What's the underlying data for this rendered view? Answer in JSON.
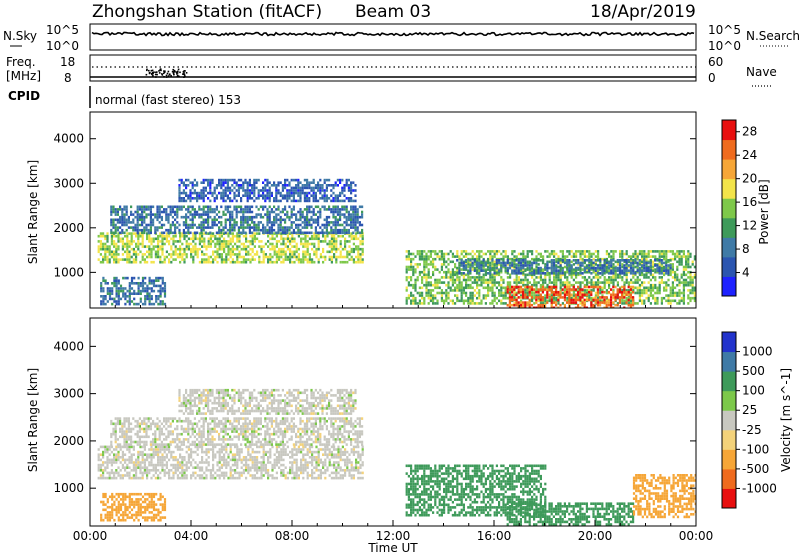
{
  "header": {
    "title": "Zhongshan Station (fitACF)",
    "beam": "Beam 03",
    "date": "18/Apr/2019"
  },
  "noise_panel": {
    "left_label": "N.Sky",
    "right_label": "N.Search",
    "left_ticks": [
      "10^5",
      "10^0"
    ],
    "right_ticks": [
      "10^5",
      "10^0"
    ]
  },
  "freq_panel": {
    "left_label_1": "Freq.",
    "left_label_2": "[MHz]",
    "right_label": "Nave",
    "left_ticks": [
      "18",
      "8"
    ],
    "right_ticks": [
      "60",
      "0"
    ],
    "cpid_label": "CPID",
    "mode_text": "normal (fast stereo) 153"
  },
  "colors": {
    "power": [
      "#1e22ff",
      "#2b55b0",
      "#3f7aa6",
      "#3e9a5a",
      "#7ec84a",
      "#f3e44a",
      "#f6a637",
      "#ef6b1e",
      "#e80f0f"
    ],
    "velocity": [
      "#e80f0f",
      "#ef6b1e",
      "#f6a637",
      "#f3d27a",
      "#c8c8c0",
      "#7cc84a",
      "#3e9a5a",
      "#3f7aa6",
      "#2233cc"
    ]
  },
  "chart_data": [
    {
      "type": "heatmap",
      "name": "power",
      "xlabel": "",
      "ylabel": "Slant Range [km]",
      "xlim": [
        "00:00",
        "24:00"
      ],
      "ylim": [
        200,
        4600
      ],
      "yticks": [
        1000,
        2000,
        3000,
        4000
      ],
      "ytick_labels": [
        "1000",
        "2000",
        "3000",
        "4000"
      ],
      "colorbar": {
        "label": "Power [dB]",
        "tick_values": [
          4,
          8,
          12,
          16,
          20,
          24,
          28
        ],
        "tick_labels": [
          "4",
          "8",
          "12",
          "16",
          "20",
          "24",
          "28"
        ],
        "range": [
          0,
          30
        ]
      },
      "regions": [
        {
          "t0": 0.3,
          "t1": 10.8,
          "r0": 1200,
          "r1": 1900,
          "value": 16
        },
        {
          "t0": 0.8,
          "t1": 10.8,
          "r0": 1900,
          "r1": 2500,
          "value": 8
        },
        {
          "t0": 3.5,
          "t1": 10.5,
          "r0": 2600,
          "r1": 3100,
          "value": 6
        },
        {
          "t0": 0.4,
          "t1": 3.0,
          "r0": 300,
          "r1": 900,
          "value": 8
        },
        {
          "t0": 12.5,
          "t1": 24.0,
          "r0": 300,
          "r1": 1500,
          "value": 14
        },
        {
          "t0": 16.5,
          "t1": 21.5,
          "r0": 200,
          "r1": 700,
          "value": 26
        },
        {
          "t0": 14.5,
          "t1": 23.0,
          "r0": 1000,
          "r1": 1300,
          "value": 8
        }
      ]
    },
    {
      "type": "heatmap",
      "name": "velocity",
      "xlabel": "Time UT",
      "ylabel": "Slant Range [km]",
      "xlim": [
        "00:00",
        "24:00"
      ],
      "xticks": [
        "00:00",
        "04:00",
        "08:00",
        "12:00",
        "16:00",
        "20:00",
        "00:00"
      ],
      "ylim": [
        200,
        4600
      ],
      "yticks": [
        1000,
        2000,
        3000,
        4000
      ],
      "ytick_labels": [
        "1000",
        "2000",
        "3000",
        "4000"
      ],
      "colorbar": {
        "label": "Velocity [m s^-1]",
        "tick_labels": [
          "1000",
          "500",
          "100",
          "25",
          "-25",
          "-100",
          "-500",
          "-1000"
        ],
        "range": [
          -1200,
          1200
        ]
      },
      "regions": [
        {
          "t0": 0.3,
          "t1": 10.8,
          "r0": 1200,
          "r1": 1900,
          "value": 0
        },
        {
          "t0": 0.8,
          "t1": 10.8,
          "r0": 1900,
          "r1": 2500,
          "value": 0
        },
        {
          "t0": 3.5,
          "t1": 10.5,
          "r0": 2600,
          "r1": 3100,
          "value": 0
        },
        {
          "t0": 0.4,
          "t1": 3.0,
          "r0": 300,
          "r1": 900,
          "value": -300
        },
        {
          "t0": 12.5,
          "t1": 18.0,
          "r0": 400,
          "r1": 1500,
          "value": 200
        },
        {
          "t0": 16.5,
          "t1": 21.5,
          "r0": 200,
          "r1": 700,
          "value": 150
        },
        {
          "t0": 21.5,
          "t1": 24.0,
          "r0": 400,
          "r1": 1300,
          "value": -300
        }
      ]
    }
  ]
}
